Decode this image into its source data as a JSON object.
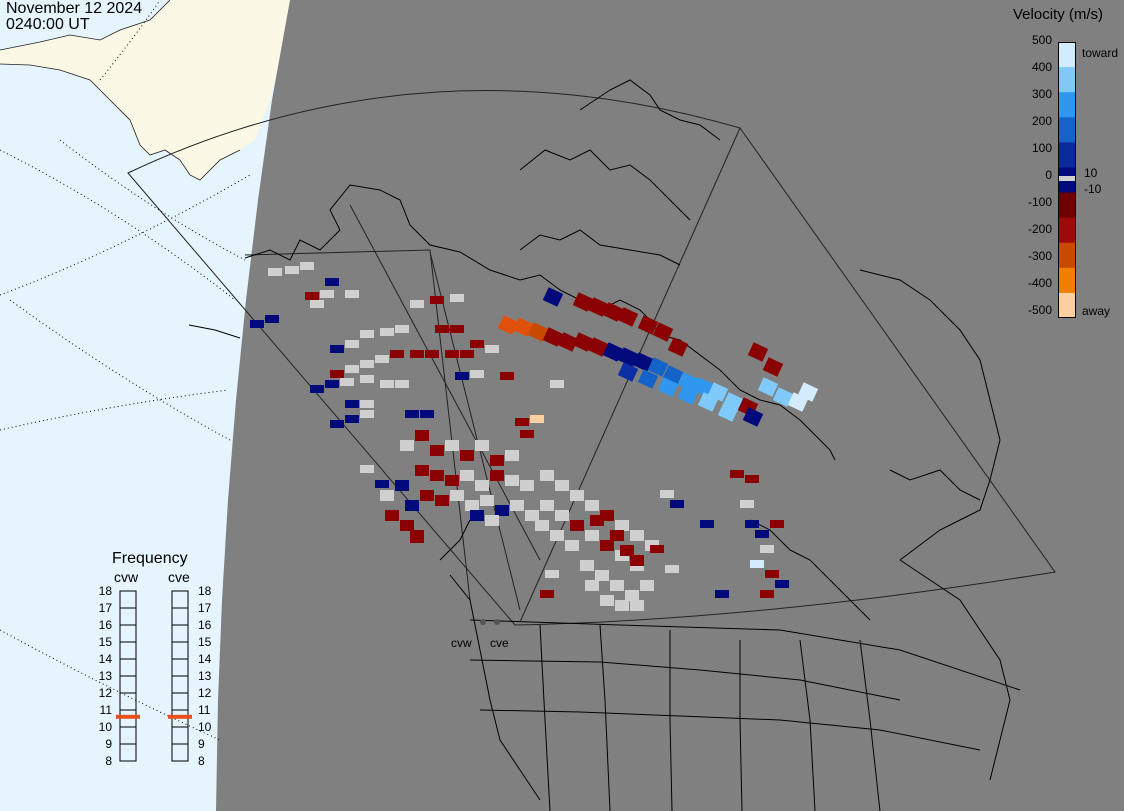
{
  "header": {
    "date": "November 12 2024",
    "time": "0240:00 UT"
  },
  "colors": {
    "land_day": "#fbf8e6",
    "ocean_day": "#e6f4fe",
    "night": "#808080",
    "ground_scatter": "#cfcfcf",
    "lines": "#000000",
    "grid": "#333333"
  },
  "velocity_scale": {
    "title": "Velocity (m/s)",
    "ticks": [
      "500",
      "400",
      "300",
      "200",
      "100",
      "0",
      "-100",
      "-200",
      "-300",
      "-400",
      "-500"
    ],
    "inner_labels": [
      "10",
      "-10"
    ],
    "toward_label": "toward",
    "away_label": "away",
    "colors": [
      "#d3ecfd",
      "#7fcafb",
      "#2f97f0",
      "#1463c8",
      "#0a2a9c",
      "#000a7a",
      "#6e0000",
      "#9c0a0a",
      "#c84a00",
      "#f07f00",
      "#fccf9f"
    ]
  },
  "frequency": {
    "title": "Frequency",
    "radars": [
      {
        "name": "cvw",
        "value_mhz": 10.6
      },
      {
        "name": "cve",
        "value_mhz": 10.6
      }
    ],
    "scale": [
      "18",
      "17",
      "16",
      "15",
      "14",
      "13",
      "12",
      "11",
      "10",
      "9",
      "8"
    ],
    "marker_color": "#e8501e"
  },
  "radar_sites": [
    {
      "name": "cvw"
    },
    {
      "name": "cve"
    }
  ]
}
